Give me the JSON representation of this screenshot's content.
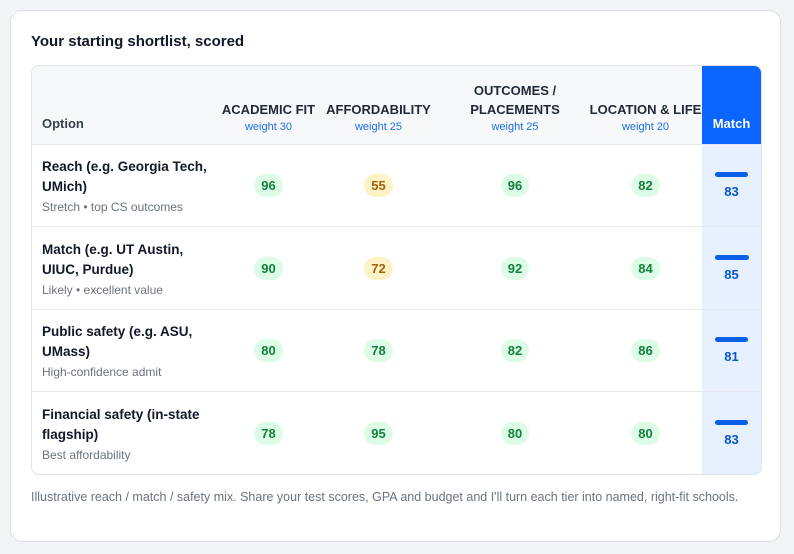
{
  "title": "Your starting shortlist, scored",
  "table": {
    "columns": [
      {
        "label": "Option"
      },
      {
        "label": "ACADEMIC FIT",
        "weight": "weight 30"
      },
      {
        "label": "AFFORDABILITY",
        "weight": "weight 25"
      },
      {
        "label": "OUTCOMES / PLACEMENTS",
        "weight": "weight 25"
      },
      {
        "label": "LOCATION & LIFE",
        "weight": "weight 20"
      },
      {
        "label": "Match"
      }
    ],
    "rows": [
      {
        "option": "Reach (e.g. Georgia Tech, UMich)",
        "note": "Stretch • top CS outcomes",
        "scores": [
          96,
          55,
          96,
          82
        ],
        "score_tones": [
          "good",
          "warn",
          "good",
          "good"
        ],
        "match": 83
      },
      {
        "option": "Match (e.g. UT Austin, UIUC, Purdue)",
        "note": "Likely • excellent value",
        "scores": [
          90,
          72,
          92,
          84
        ],
        "score_tones": [
          "good",
          "warn",
          "good",
          "good"
        ],
        "match": 85
      },
      {
        "option": "Public safety (e.g. ASU, UMass)",
        "note": "High-confidence admit",
        "scores": [
          80,
          78,
          82,
          86
        ],
        "score_tones": [
          "good",
          "good",
          "good",
          "good"
        ],
        "match": 81
      },
      {
        "option": "Financial safety (in-state flagship)",
        "note": "Best affordability",
        "scores": [
          78,
          95,
          80,
          80
        ],
        "score_tones": [
          "good",
          "good",
          "good",
          "good"
        ],
        "match": 83
      }
    ]
  },
  "footnote": "Illustrative reach / match / safety mix. Share your test scores, GPA and budget and I'll turn each tier into named, right-fit schools."
}
